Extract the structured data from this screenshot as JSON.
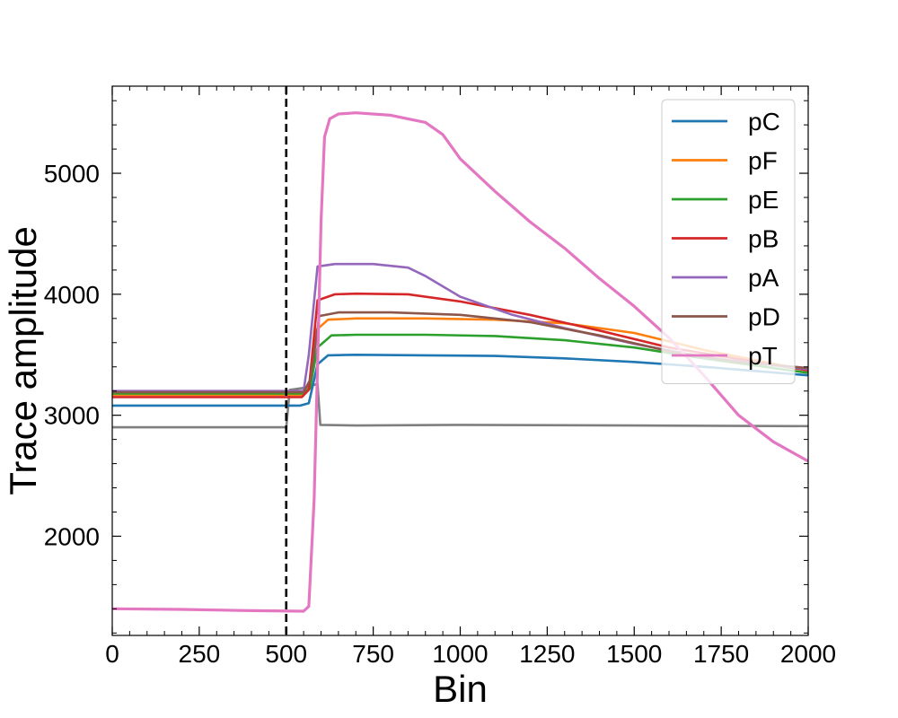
{
  "chart_data": {
    "type": "line",
    "xlabel": "Bin",
    "ylabel": "Trace amplitude",
    "xlim": [
      0,
      2000
    ],
    "ylim": [
      1180,
      5720
    ],
    "xticks": [
      0,
      250,
      500,
      750,
      1000,
      1250,
      1500,
      1750,
      2000
    ],
    "yticks": [
      2000,
      3000,
      4000,
      5000
    ],
    "grid": false,
    "legend_position": "top-right",
    "vline": {
      "x": 500,
      "style": "dashed",
      "color": "#000000"
    },
    "series": [
      {
        "name": "pC",
        "color": "#1f77b4",
        "points": [
          [
            0,
            3080
          ],
          [
            540,
            3080
          ],
          [
            565,
            3100
          ],
          [
            590,
            3420
          ],
          [
            620,
            3495
          ],
          [
            700,
            3500
          ],
          [
            900,
            3495
          ],
          [
            1100,
            3490
          ],
          [
            1300,
            3470
          ],
          [
            1500,
            3440
          ],
          [
            1700,
            3400
          ],
          [
            2000,
            3330
          ]
        ]
      },
      {
        "name": "pF",
        "color": "#ff7f0e",
        "points": [
          [
            0,
            3170
          ],
          [
            545,
            3170
          ],
          [
            565,
            3220
          ],
          [
            585,
            3700
          ],
          [
            620,
            3790
          ],
          [
            700,
            3800
          ],
          [
            900,
            3800
          ],
          [
            1100,
            3790
          ],
          [
            1300,
            3760
          ],
          [
            1500,
            3680
          ],
          [
            1700,
            3540
          ],
          [
            2000,
            3370
          ]
        ]
      },
      {
        "name": "pE",
        "color": "#2ca02c",
        "points": [
          [
            0,
            3180
          ],
          [
            545,
            3180
          ],
          [
            568,
            3220
          ],
          [
            590,
            3560
          ],
          [
            630,
            3660
          ],
          [
            700,
            3665
          ],
          [
            900,
            3665
          ],
          [
            1100,
            3655
          ],
          [
            1300,
            3620
          ],
          [
            1500,
            3560
          ],
          [
            1700,
            3470
          ],
          [
            2000,
            3350
          ]
        ]
      },
      {
        "name": "pB",
        "color": "#d62728",
        "points": [
          [
            0,
            3150
          ],
          [
            545,
            3150
          ],
          [
            565,
            3210
          ],
          [
            590,
            3950
          ],
          [
            640,
            4000
          ],
          [
            700,
            4005
          ],
          [
            850,
            4000
          ],
          [
            1000,
            3940
          ],
          [
            1200,
            3830
          ],
          [
            1400,
            3700
          ],
          [
            1600,
            3560
          ],
          [
            2000,
            3370
          ]
        ]
      },
      {
        "name": "pA",
        "color": "#9467bd",
        "points": [
          [
            0,
            3200
          ],
          [
            550,
            3200
          ],
          [
            565,
            3500
          ],
          [
            590,
            4230
          ],
          [
            640,
            4250
          ],
          [
            750,
            4250
          ],
          [
            850,
            4220
          ],
          [
            900,
            4150
          ],
          [
            1000,
            3980
          ],
          [
            1150,
            3830
          ],
          [
            1300,
            3720
          ],
          [
            1500,
            3590
          ],
          [
            1700,
            3480
          ],
          [
            2000,
            3380
          ]
        ]
      },
      {
        "name": "pD",
        "color": "#8c564b",
        "points": [
          [
            0,
            3190
          ],
          [
            550,
            3190
          ],
          [
            570,
            3300
          ],
          [
            595,
            3820
          ],
          [
            650,
            3850
          ],
          [
            800,
            3850
          ],
          [
            1000,
            3830
          ],
          [
            1200,
            3770
          ],
          [
            1400,
            3660
          ],
          [
            1600,
            3530
          ],
          [
            1800,
            3440
          ],
          [
            2000,
            3390
          ]
        ]
      },
      {
        "name": "pT",
        "color": "#e377c2",
        "points": [
          [
            0,
            1400
          ],
          [
            200,
            1395
          ],
          [
            400,
            1385
          ],
          [
            550,
            1380
          ],
          [
            565,
            1420
          ],
          [
            580,
            2300
          ],
          [
            590,
            3400
          ],
          [
            600,
            4600
          ],
          [
            610,
            5300
          ],
          [
            625,
            5450
          ],
          [
            650,
            5490
          ],
          [
            700,
            5500
          ],
          [
            800,
            5480
          ],
          [
            900,
            5420
          ],
          [
            950,
            5320
          ],
          [
            1000,
            5120
          ],
          [
            1100,
            4850
          ],
          [
            1200,
            4600
          ],
          [
            1300,
            4380
          ],
          [
            1400,
            4130
          ],
          [
            1500,
            3900
          ],
          [
            1600,
            3640
          ],
          [
            1700,
            3330
          ],
          [
            1800,
            3000
          ],
          [
            1900,
            2780
          ],
          [
            2000,
            2620
          ]
        ]
      },
      {
        "name": "",
        "color": "#7f7f7f",
        "points": [
          [
            0,
            2900
          ],
          [
            500,
            2900
          ],
          [
            510,
            3210
          ],
          [
            560,
            3230
          ],
          [
            590,
            3260
          ],
          [
            598,
            2920
          ],
          [
            700,
            2915
          ],
          [
            1000,
            2920
          ],
          [
            1500,
            2915
          ],
          [
            2000,
            2910
          ]
        ]
      }
    ]
  }
}
